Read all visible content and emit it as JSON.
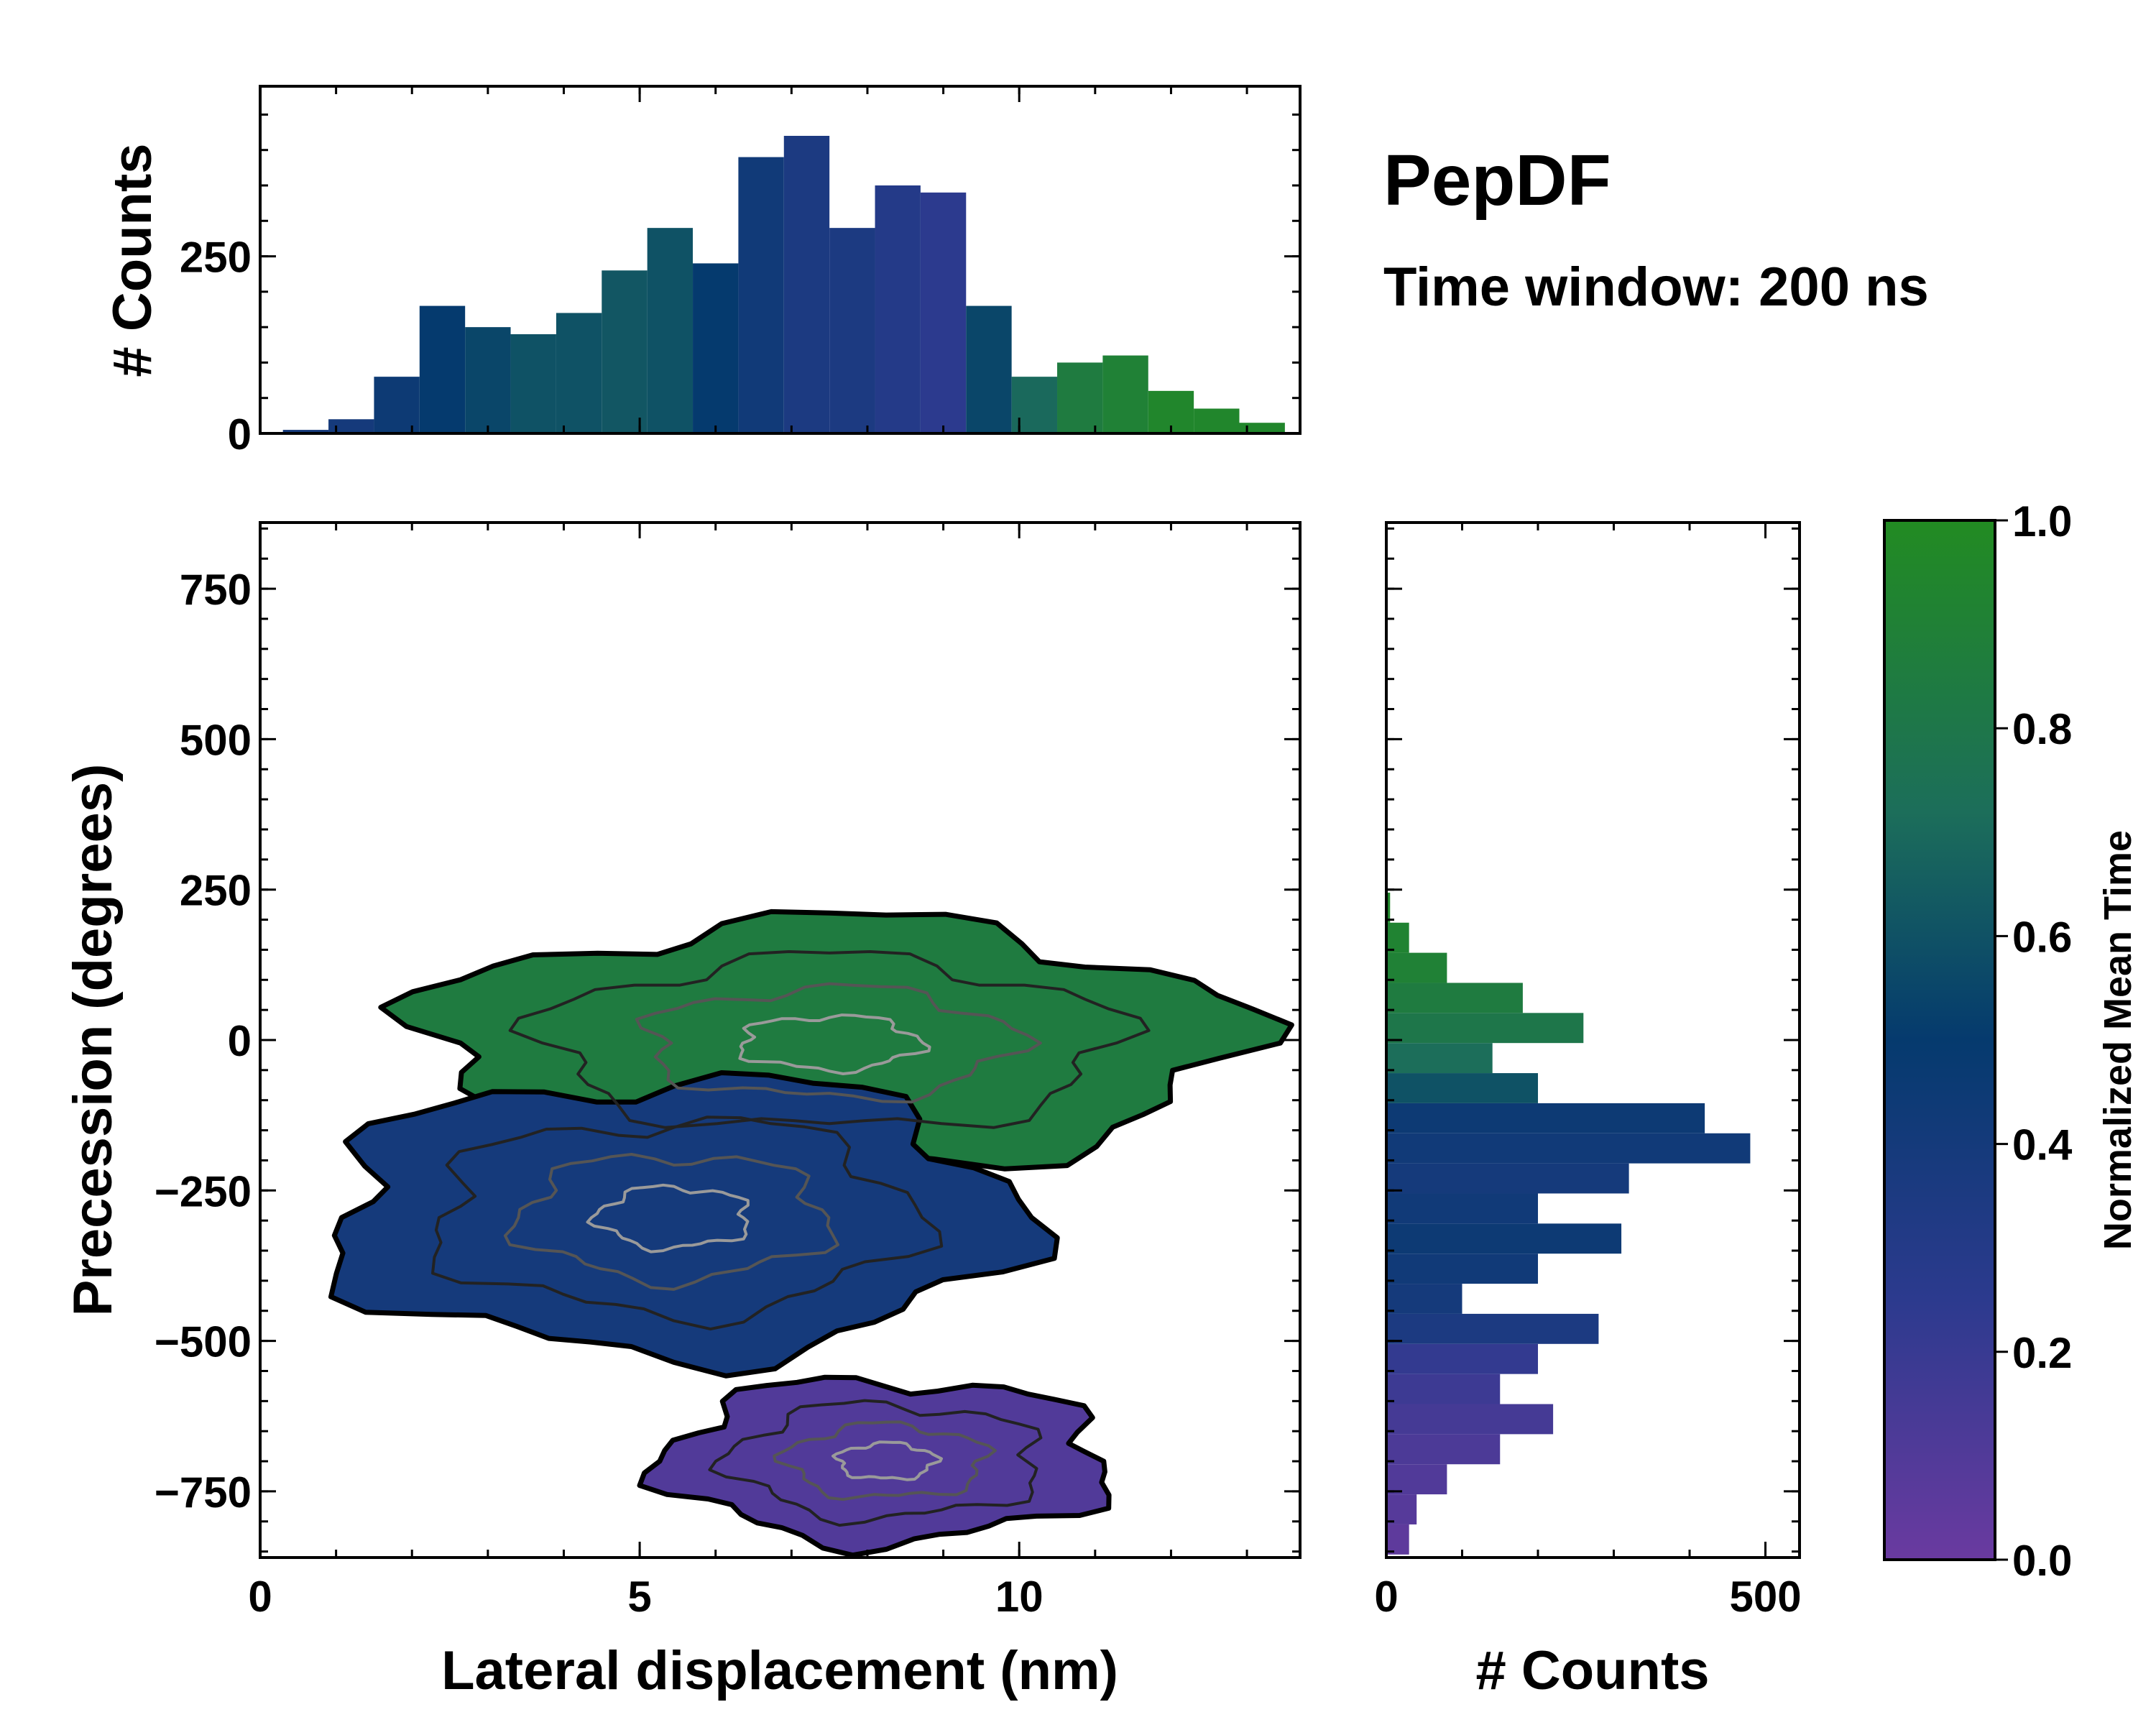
{
  "chart_data": [
    {
      "type": "heatmap",
      "panel": "main",
      "xlabel": "Lateral displacement (nm)",
      "ylabel": "Precession (degrees)",
      "xlim": [
        0,
        13.7
      ],
      "ylim": [
        -860,
        860
      ],
      "xticks": [
        0,
        5,
        10
      ],
      "yticks": [
        -750,
        -500,
        -250,
        0,
        250,
        500,
        750
      ],
      "ytick_labels": [
        "−750",
        "−500",
        "−250",
        "0",
        "250",
        "500",
        "750"
      ],
      "color_meaning": "Normalized Mean Time",
      "clusters": [
        {
          "label": "upper cluster",
          "x_range": [
            1.5,
            13.5
          ],
          "y_range": [
            -230,
            220
          ],
          "mean_time": 0.85
        },
        {
          "label": "middle cluster",
          "x_range": [
            0.4,
            10.5
          ],
          "y_range": [
            -550,
            -40
          ],
          "mean_time": 0.4
        },
        {
          "label": "lower cluster",
          "x_range": [
            5,
            11.5
          ],
          "y_range": [
            -850,
            -550
          ],
          "mean_time": 0.1
        }
      ]
    },
    {
      "type": "bar",
      "panel": "top-marginal",
      "ylabel": "# Counts",
      "xlim": [
        0,
        13.7
      ],
      "ylim": [
        0,
        490
      ],
      "yticks": [
        0,
        250
      ],
      "x": [
        0.6,
        1.2,
        1.8,
        2.4,
        3.0,
        3.6,
        4.2,
        4.8,
        5.4,
        6.0,
        6.6,
        7.2,
        7.8,
        8.4,
        9.0,
        9.6,
        10.2,
        10.8,
        11.4,
        12.0,
        12.6,
        13.2
      ],
      "values": [
        5,
        20,
        80,
        180,
        150,
        140,
        170,
        230,
        290,
        240,
        390,
        420,
        290,
        350,
        340,
        180,
        80,
        100,
        110,
        60,
        35,
        15
      ],
      "mean_time": [
        0.4,
        0.4,
        0.45,
        0.5,
        0.55,
        0.6,
        0.6,
        0.62,
        0.6,
        0.5,
        0.42,
        0.35,
        0.35,
        0.3,
        0.25,
        0.55,
        0.7,
        0.85,
        0.9,
        0.95,
        0.95,
        0.95
      ]
    },
    {
      "type": "bar",
      "panel": "right-marginal",
      "orientation": "horizontal",
      "xlabel": "# Counts",
      "xlim": [
        0,
        545
      ],
      "xticks": [
        0,
        500
      ],
      "ylim": [
        -860,
        860
      ],
      "y": [
        -830,
        -780,
        -730,
        -680,
        -630,
        -580,
        -530,
        -480,
        -430,
        -380,
        -330,
        -280,
        -230,
        -180,
        -130,
        -80,
        -30,
        20,
        70,
        120,
        170,
        220
      ],
      "values": [
        30,
        40,
        80,
        150,
        220,
        150,
        200,
        280,
        100,
        200,
        310,
        200,
        320,
        480,
        420,
        200,
        140,
        260,
        180,
        80,
        30,
        5
      ],
      "mean_time": [
        0.05,
        0.08,
        0.1,
        0.12,
        0.15,
        0.18,
        0.22,
        0.35,
        0.4,
        0.42,
        0.45,
        0.42,
        0.4,
        0.42,
        0.45,
        0.6,
        0.72,
        0.8,
        0.85,
        0.9,
        0.92,
        0.95
      ]
    },
    {
      "type": "colorbar",
      "label": "Normalized Mean Time",
      "range": [
        0.0,
        1.0
      ],
      "ticks": [
        "0.0",
        "0.2",
        "0.4",
        "0.6",
        "0.8",
        "1.0"
      ],
      "colors": [
        "#6a3aa0",
        "#2c3a8e",
        "#053a6e",
        "#1c6e5a",
        "#228b22"
      ]
    }
  ],
  "annotations": {
    "title": "PepDF",
    "subtitle": "Time window: 200 ns"
  }
}
